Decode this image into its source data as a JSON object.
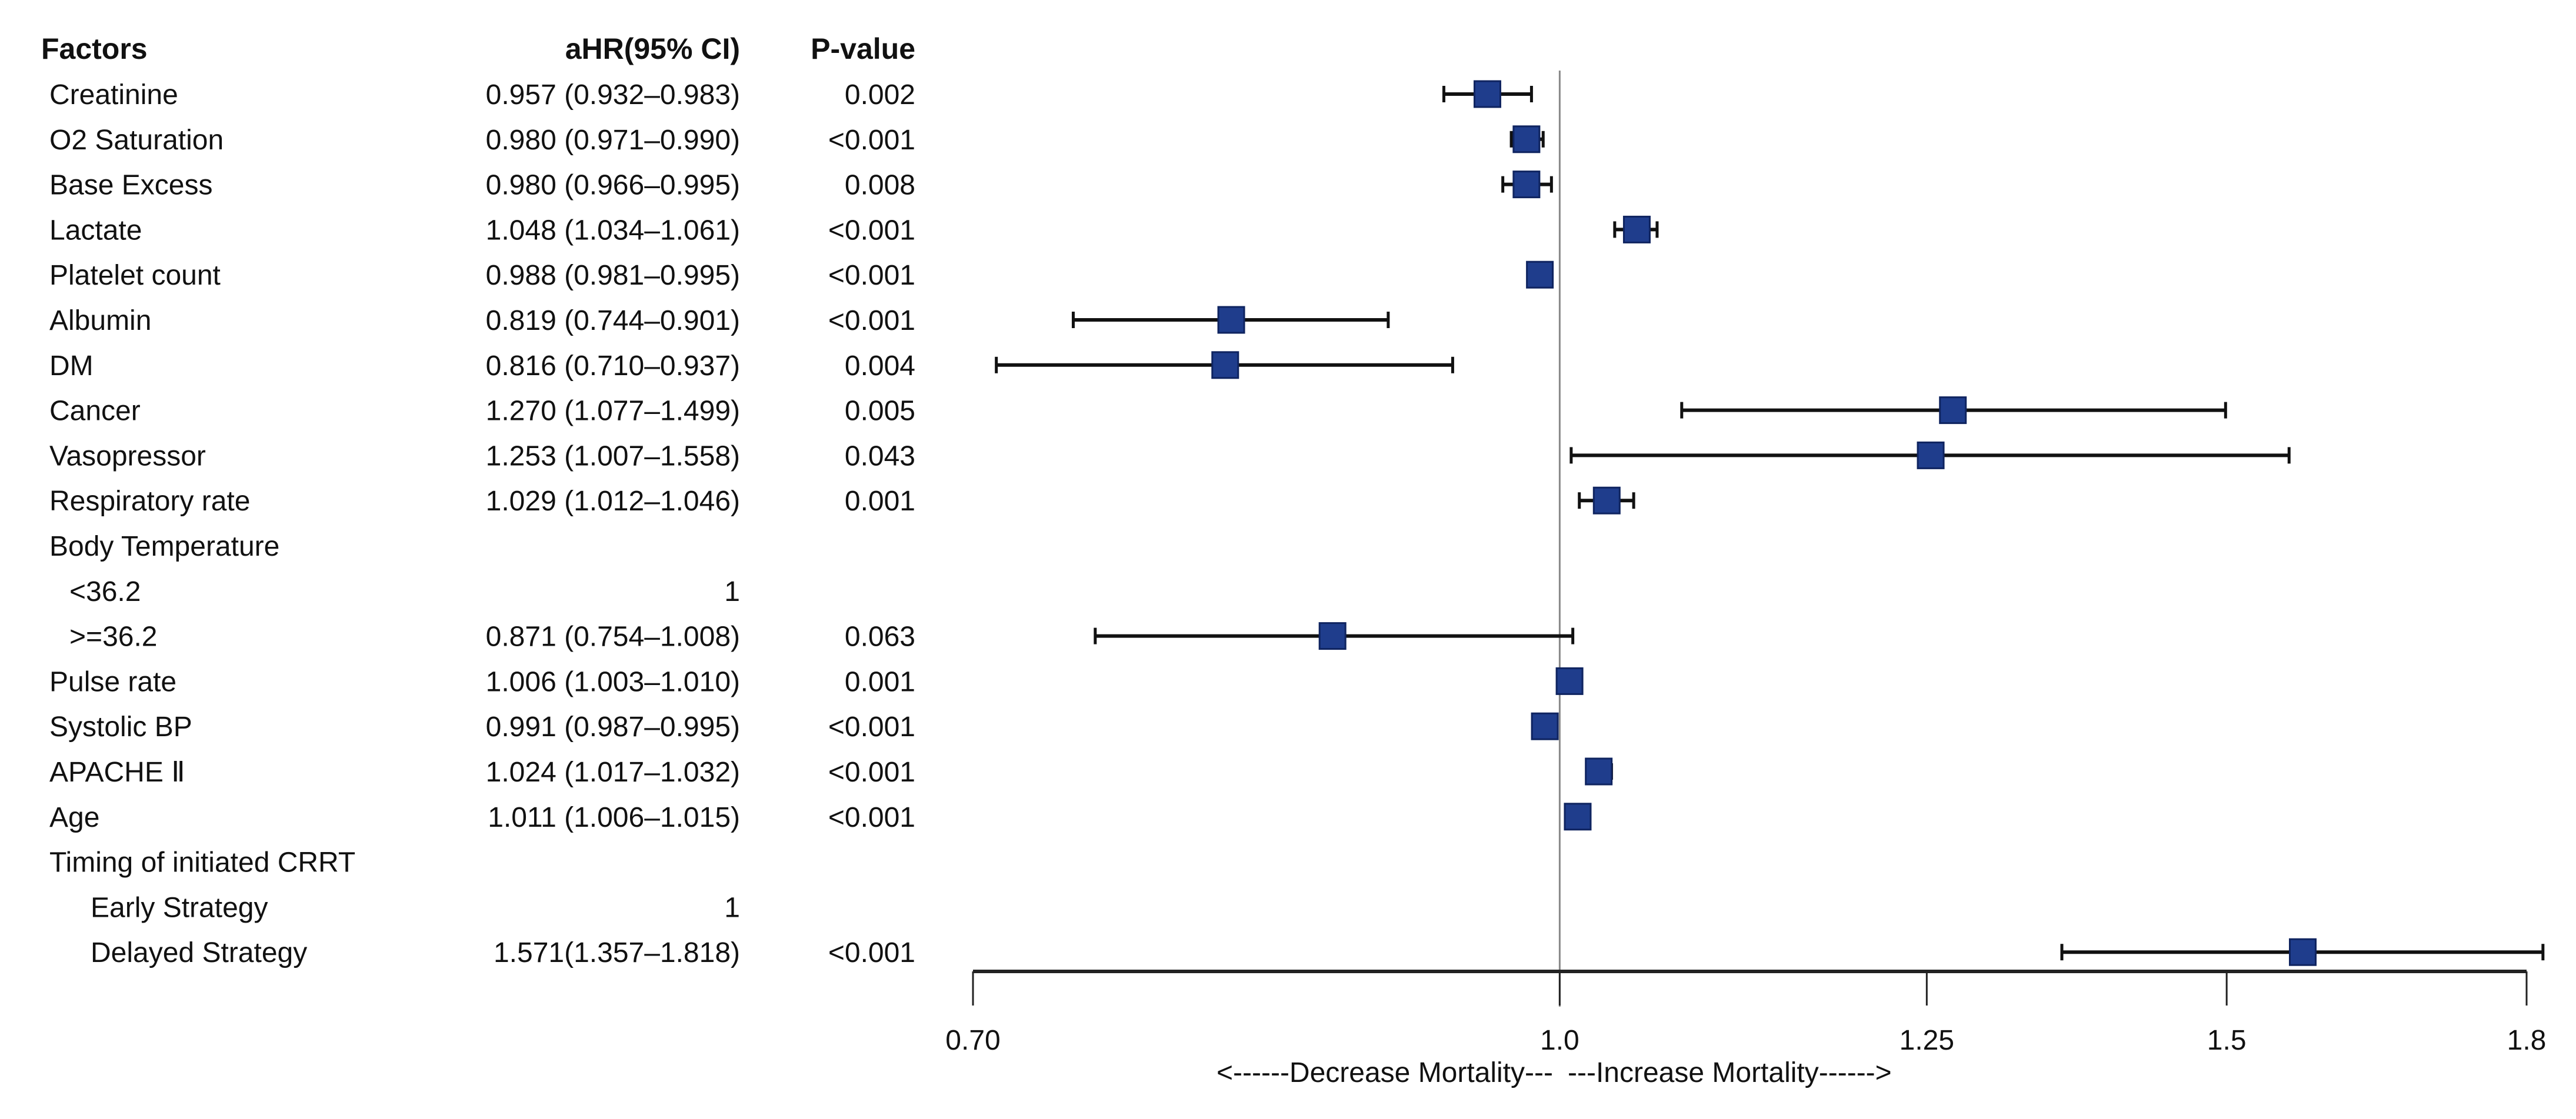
{
  "chart_data": {
    "type": "forest",
    "x_scale": "log",
    "xlim": [
      0.7,
      1.8
    ],
    "reference_line": 1.0,
    "xticks": [
      "0.70",
      "1.0",
      "1.25",
      "1.5",
      "1.8"
    ],
    "xtick_values": [
      0.7,
      1.0,
      1.25,
      1.5,
      1.8
    ],
    "annotation_left": "<------Decrease Mortality---",
    "annotation_right": "---Increase Mortality------>",
    "columns": {
      "factor": "Factors",
      "ahr": "aHR(95% CI)",
      "p": "P-value"
    },
    "marker_color": "#1f3d8c",
    "rows": [
      {
        "factor": "Creatinine",
        "level": 0,
        "ahr": "0.957 (0.932–0.983)",
        "p": "0.002",
        "hr": 0.957,
        "lo": 0.932,
        "hi": 0.983
      },
      {
        "factor": "O2 Saturation",
        "level": 0,
        "ahr": "0.980 (0.971–0.990)",
        "p": "<0.001",
        "hr": 0.98,
        "lo": 0.971,
        "hi": 0.99
      },
      {
        "factor": "Base Excess",
        "level": 0,
        "ahr": "0.980 (0.966–0.995)",
        "p": "0.008",
        "hr": 0.98,
        "lo": 0.966,
        "hi": 0.995
      },
      {
        "factor": "Lactate",
        "level": 0,
        "ahr": "1.048 (1.034–1.061)",
        "p": "<0.001",
        "hr": 1.048,
        "lo": 1.034,
        "hi": 1.061
      },
      {
        "factor": "Platelet count",
        "level": 0,
        "ahr": "0.988 (0.981–0.995)",
        "p": "<0.001",
        "hr": 0.988,
        "lo": 0.981,
        "hi": 0.995
      },
      {
        "factor": "Albumin",
        "level": 0,
        "ahr": "0.819 (0.744–0.901)",
        "p": "<0.001",
        "hr": 0.819,
        "lo": 0.744,
        "hi": 0.901
      },
      {
        "factor": "DM",
        "level": 0,
        "ahr": "0.816 (0.710–0.937)",
        "p": "0.004",
        "hr": 0.816,
        "lo": 0.71,
        "hi": 0.937
      },
      {
        "factor": "Cancer",
        "level": 0,
        "ahr": "1.270 (1.077–1.499)",
        "p": "0.005",
        "hr": 1.27,
        "lo": 1.077,
        "hi": 1.499
      },
      {
        "factor": "Vasopressor",
        "level": 0,
        "ahr": "1.253 (1.007–1.558)",
        "p": "0.043",
        "hr": 1.253,
        "lo": 1.007,
        "hi": 1.558
      },
      {
        "factor": "Respiratory rate",
        "level": 0,
        "ahr": "1.029 (1.012–1.046)",
        "p": "0.001",
        "hr": 1.029,
        "lo": 1.012,
        "hi": 1.046
      },
      {
        "factor": "Body Temperature",
        "level": 0,
        "ahr": "",
        "p": ""
      },
      {
        "factor": "<36.2",
        "level": 1,
        "ahr": "1",
        "p": ""
      },
      {
        "factor": ">=36.2",
        "level": 1,
        "ahr": "0.871 (0.754–1.008)",
        "p": "0.063",
        "hr": 0.871,
        "lo": 0.754,
        "hi": 1.008
      },
      {
        "factor": "Pulse rate",
        "level": 0,
        "ahr": "1.006 (1.003–1.010)",
        "p": "0.001",
        "hr": 1.006,
        "lo": 1.003,
        "hi": 1.01
      },
      {
        "factor": "Systolic BP",
        "level": 0,
        "ahr": "0.991 (0.987–0.995)",
        "p": "<0.001",
        "hr": 0.991,
        "lo": 0.987,
        "hi": 0.995
      },
      {
        "factor": "APACHE Ⅱ",
        "level": 0,
        "ahr": "1.024 (1.017–1.032)",
        "p": "<0.001",
        "hr": 1.024,
        "lo": 1.017,
        "hi": 1.032
      },
      {
        "factor": "Age",
        "level": 0,
        "ahr": "1.011 (1.006–1.015)",
        "p": "<0.001",
        "hr": 1.011,
        "lo": 1.006,
        "hi": 1.015
      },
      {
        "factor": "Timing of initiated CRRT",
        "level": 0,
        "ahr": "",
        "p": ""
      },
      {
        "factor": "Early Strategy",
        "level": 2,
        "ahr": "1",
        "p": ""
      },
      {
        "factor": "Delayed Strategy",
        "level": 2,
        "ahr": "1.571(1.357–1.818)",
        "p": "<0.001",
        "hr": 1.571,
        "lo": 1.357,
        "hi": 1.818
      }
    ]
  }
}
